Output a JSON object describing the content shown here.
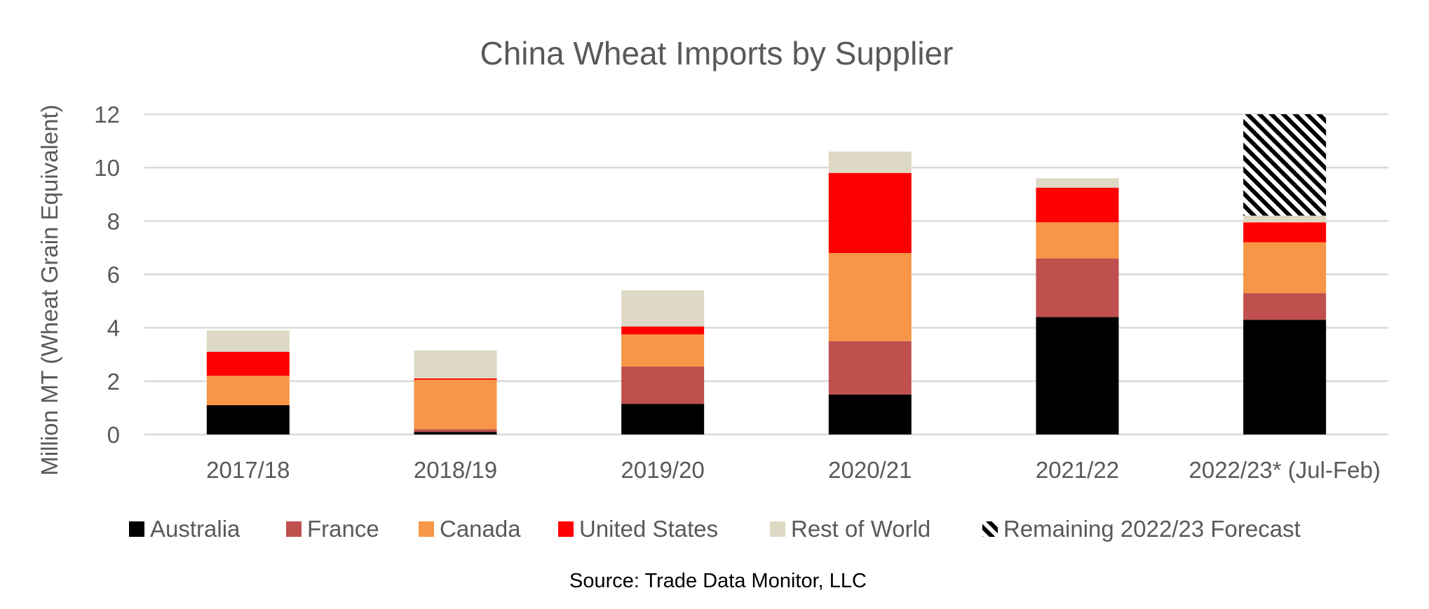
{
  "chart_data": {
    "type": "bar",
    "stacked": true,
    "title": "China Wheat Imports by Supplier",
    "xlabel": "",
    "ylabel": "Million MT (Wheat Grain Equivalent)",
    "ylim": [
      0,
      12
    ],
    "yticks": [
      0,
      2,
      4,
      6,
      8,
      10,
      12
    ],
    "grid": true,
    "legend_position": "bottom",
    "categories": [
      "2017/18",
      "2018/19",
      "2019/20",
      "2020/21",
      "2021/22",
      "2022/23* (Jul-Feb)"
    ],
    "series": [
      {
        "name": "Australia",
        "color": "#000000",
        "pattern": "solid",
        "values": [
          1.1,
          0.1,
          1.15,
          1.5,
          4.4,
          4.3
        ]
      },
      {
        "name": "France",
        "color": "#c0504d",
        "pattern": "solid",
        "values": [
          0.0,
          0.1,
          1.4,
          2.0,
          2.2,
          1.0
        ]
      },
      {
        "name": "Canada",
        "color": "#f79646",
        "pattern": "solid",
        "values": [
          1.1,
          1.85,
          1.2,
          3.3,
          1.35,
          1.9
        ]
      },
      {
        "name": "United States",
        "color": "#ff0000",
        "pattern": "solid",
        "values": [
          0.9,
          0.05,
          0.3,
          3.0,
          1.3,
          0.75
        ]
      },
      {
        "name": "Rest of World",
        "color": "#ddd9c4",
        "pattern": "solid",
        "values": [
          0.8,
          1.05,
          1.35,
          0.8,
          0.35,
          0.25
        ]
      },
      {
        "name": "Remaining 2022/23 Forecast",
        "color": "#000000",
        "pattern": "diagonal-stripes",
        "values": [
          0,
          0,
          0,
          0,
          0,
          3.8
        ]
      }
    ],
    "source": "Source: Trade Data Monitor, LLC"
  }
}
